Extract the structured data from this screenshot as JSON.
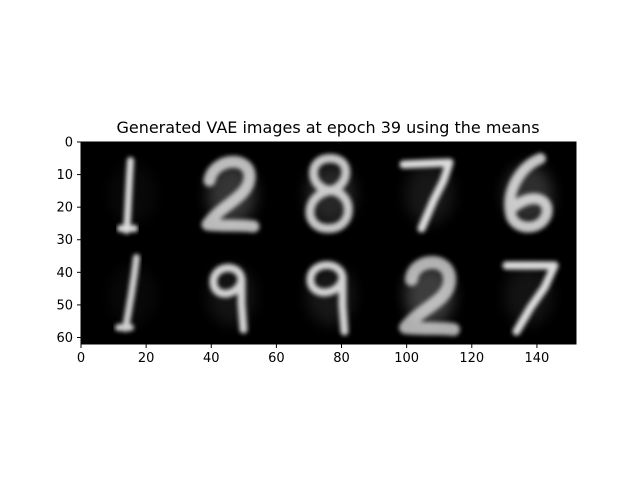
{
  "title": "Generated VAE images at epoch 39 using the means",
  "image": {
    "rows": 2,
    "cols": 5,
    "digits": [
      [
        "1",
        "2",
        "8",
        "7",
        "6"
      ],
      [
        "1",
        "9",
        "9",
        "2",
        "7"
      ]
    ],
    "background": "#000000",
    "foreground": "#ffffff"
  },
  "axes": {
    "x": {
      "ticks": [
        "0",
        "20",
        "40",
        "60",
        "80",
        "100",
        "120",
        "140"
      ],
      "range": [
        0,
        152
      ]
    },
    "y": {
      "ticks": [
        "0",
        "10",
        "20",
        "30",
        "40",
        "50",
        "60"
      ],
      "range": [
        0,
        62
      ]
    }
  }
}
